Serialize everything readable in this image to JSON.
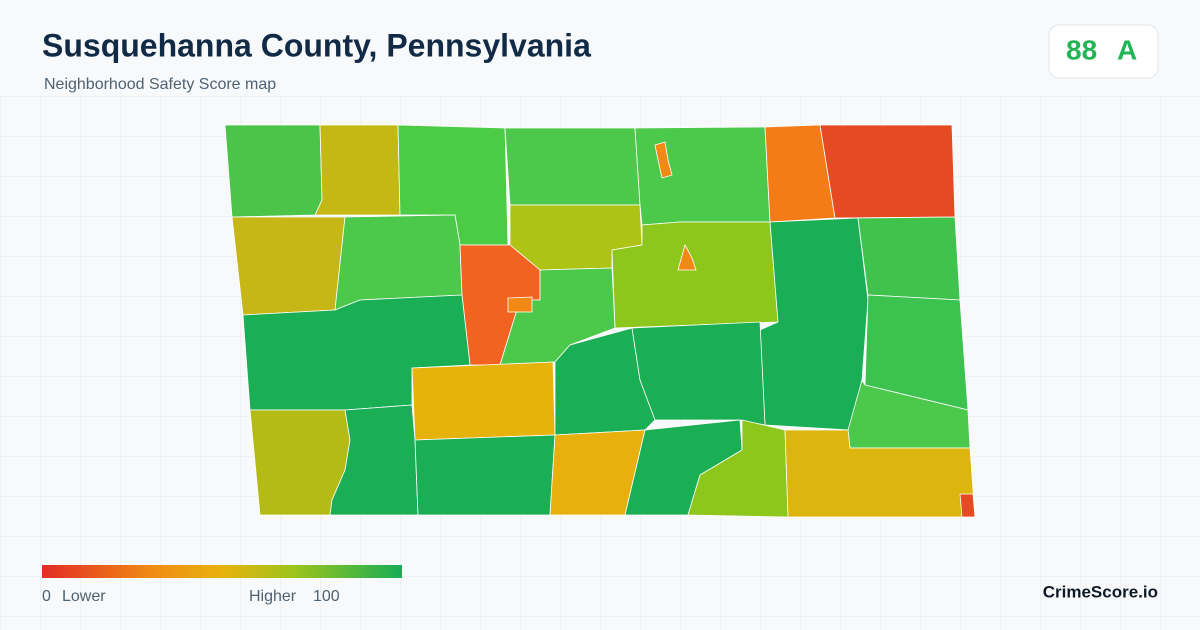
{
  "header": {
    "title": "Susquehanna County, Pennsylvania",
    "subtitle": "Neighborhood Safety Score map"
  },
  "score": {
    "value": 88,
    "grade": "A"
  },
  "legend": {
    "min": 0,
    "low_label": "Lower",
    "high_label": "Higher",
    "max": 100
  },
  "footer": {
    "brand": "CrimeScore.io"
  }
}
